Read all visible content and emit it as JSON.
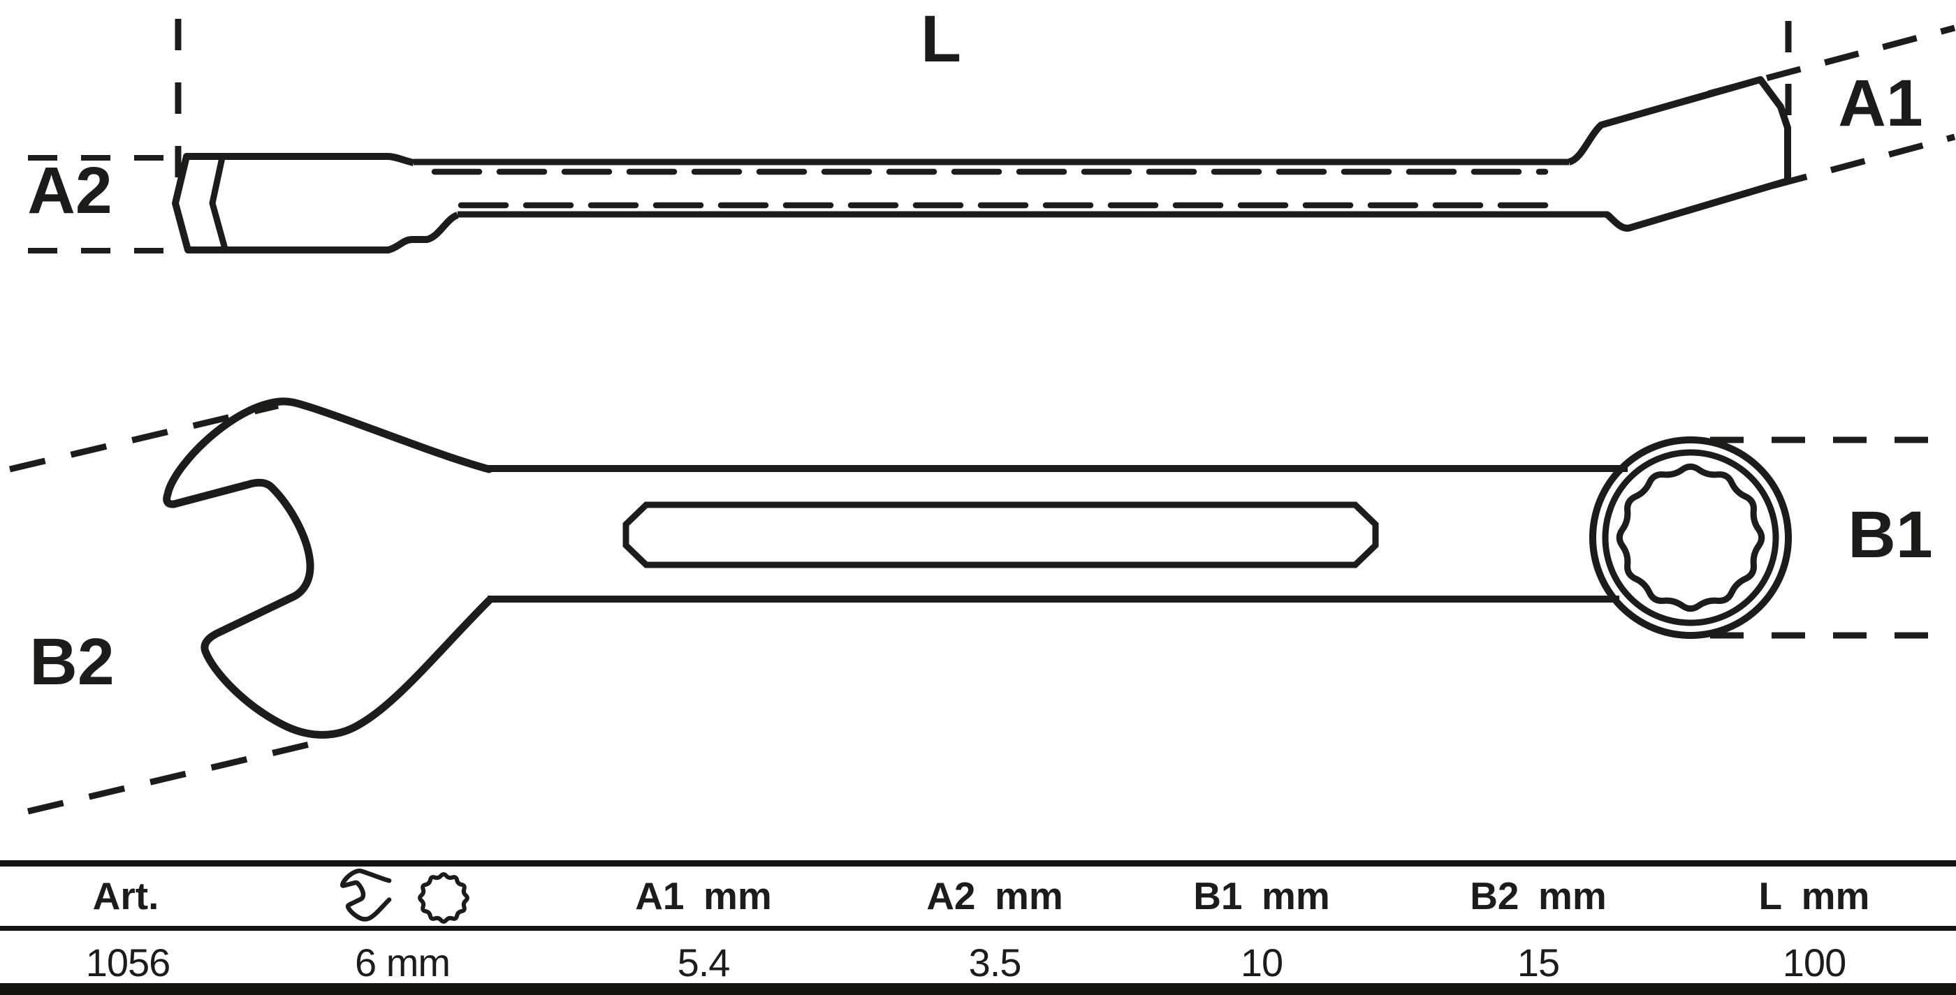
{
  "drawing": {
    "dim_labels": {
      "length": "L",
      "a1": "A1",
      "a2": "A2",
      "b1": "B1",
      "b2": "B2"
    }
  },
  "table": {
    "headers": {
      "art": "Art.",
      "a1": "A1 mm",
      "a2": "A2 mm",
      "b1": "B1 mm",
      "b2": "B2 mm",
      "l": "L mm"
    },
    "icon_names": [
      "open-end-wrench-icon",
      "ring-12-point-icon"
    ],
    "row": {
      "art": "1056",
      "size": "6 mm",
      "a1": "5.4",
      "a2": "3.5",
      "b1": "10",
      "b2": "15",
      "l": "100"
    }
  },
  "colors": {
    "ink": "#1c1c1a",
    "background": "#ffffff"
  }
}
